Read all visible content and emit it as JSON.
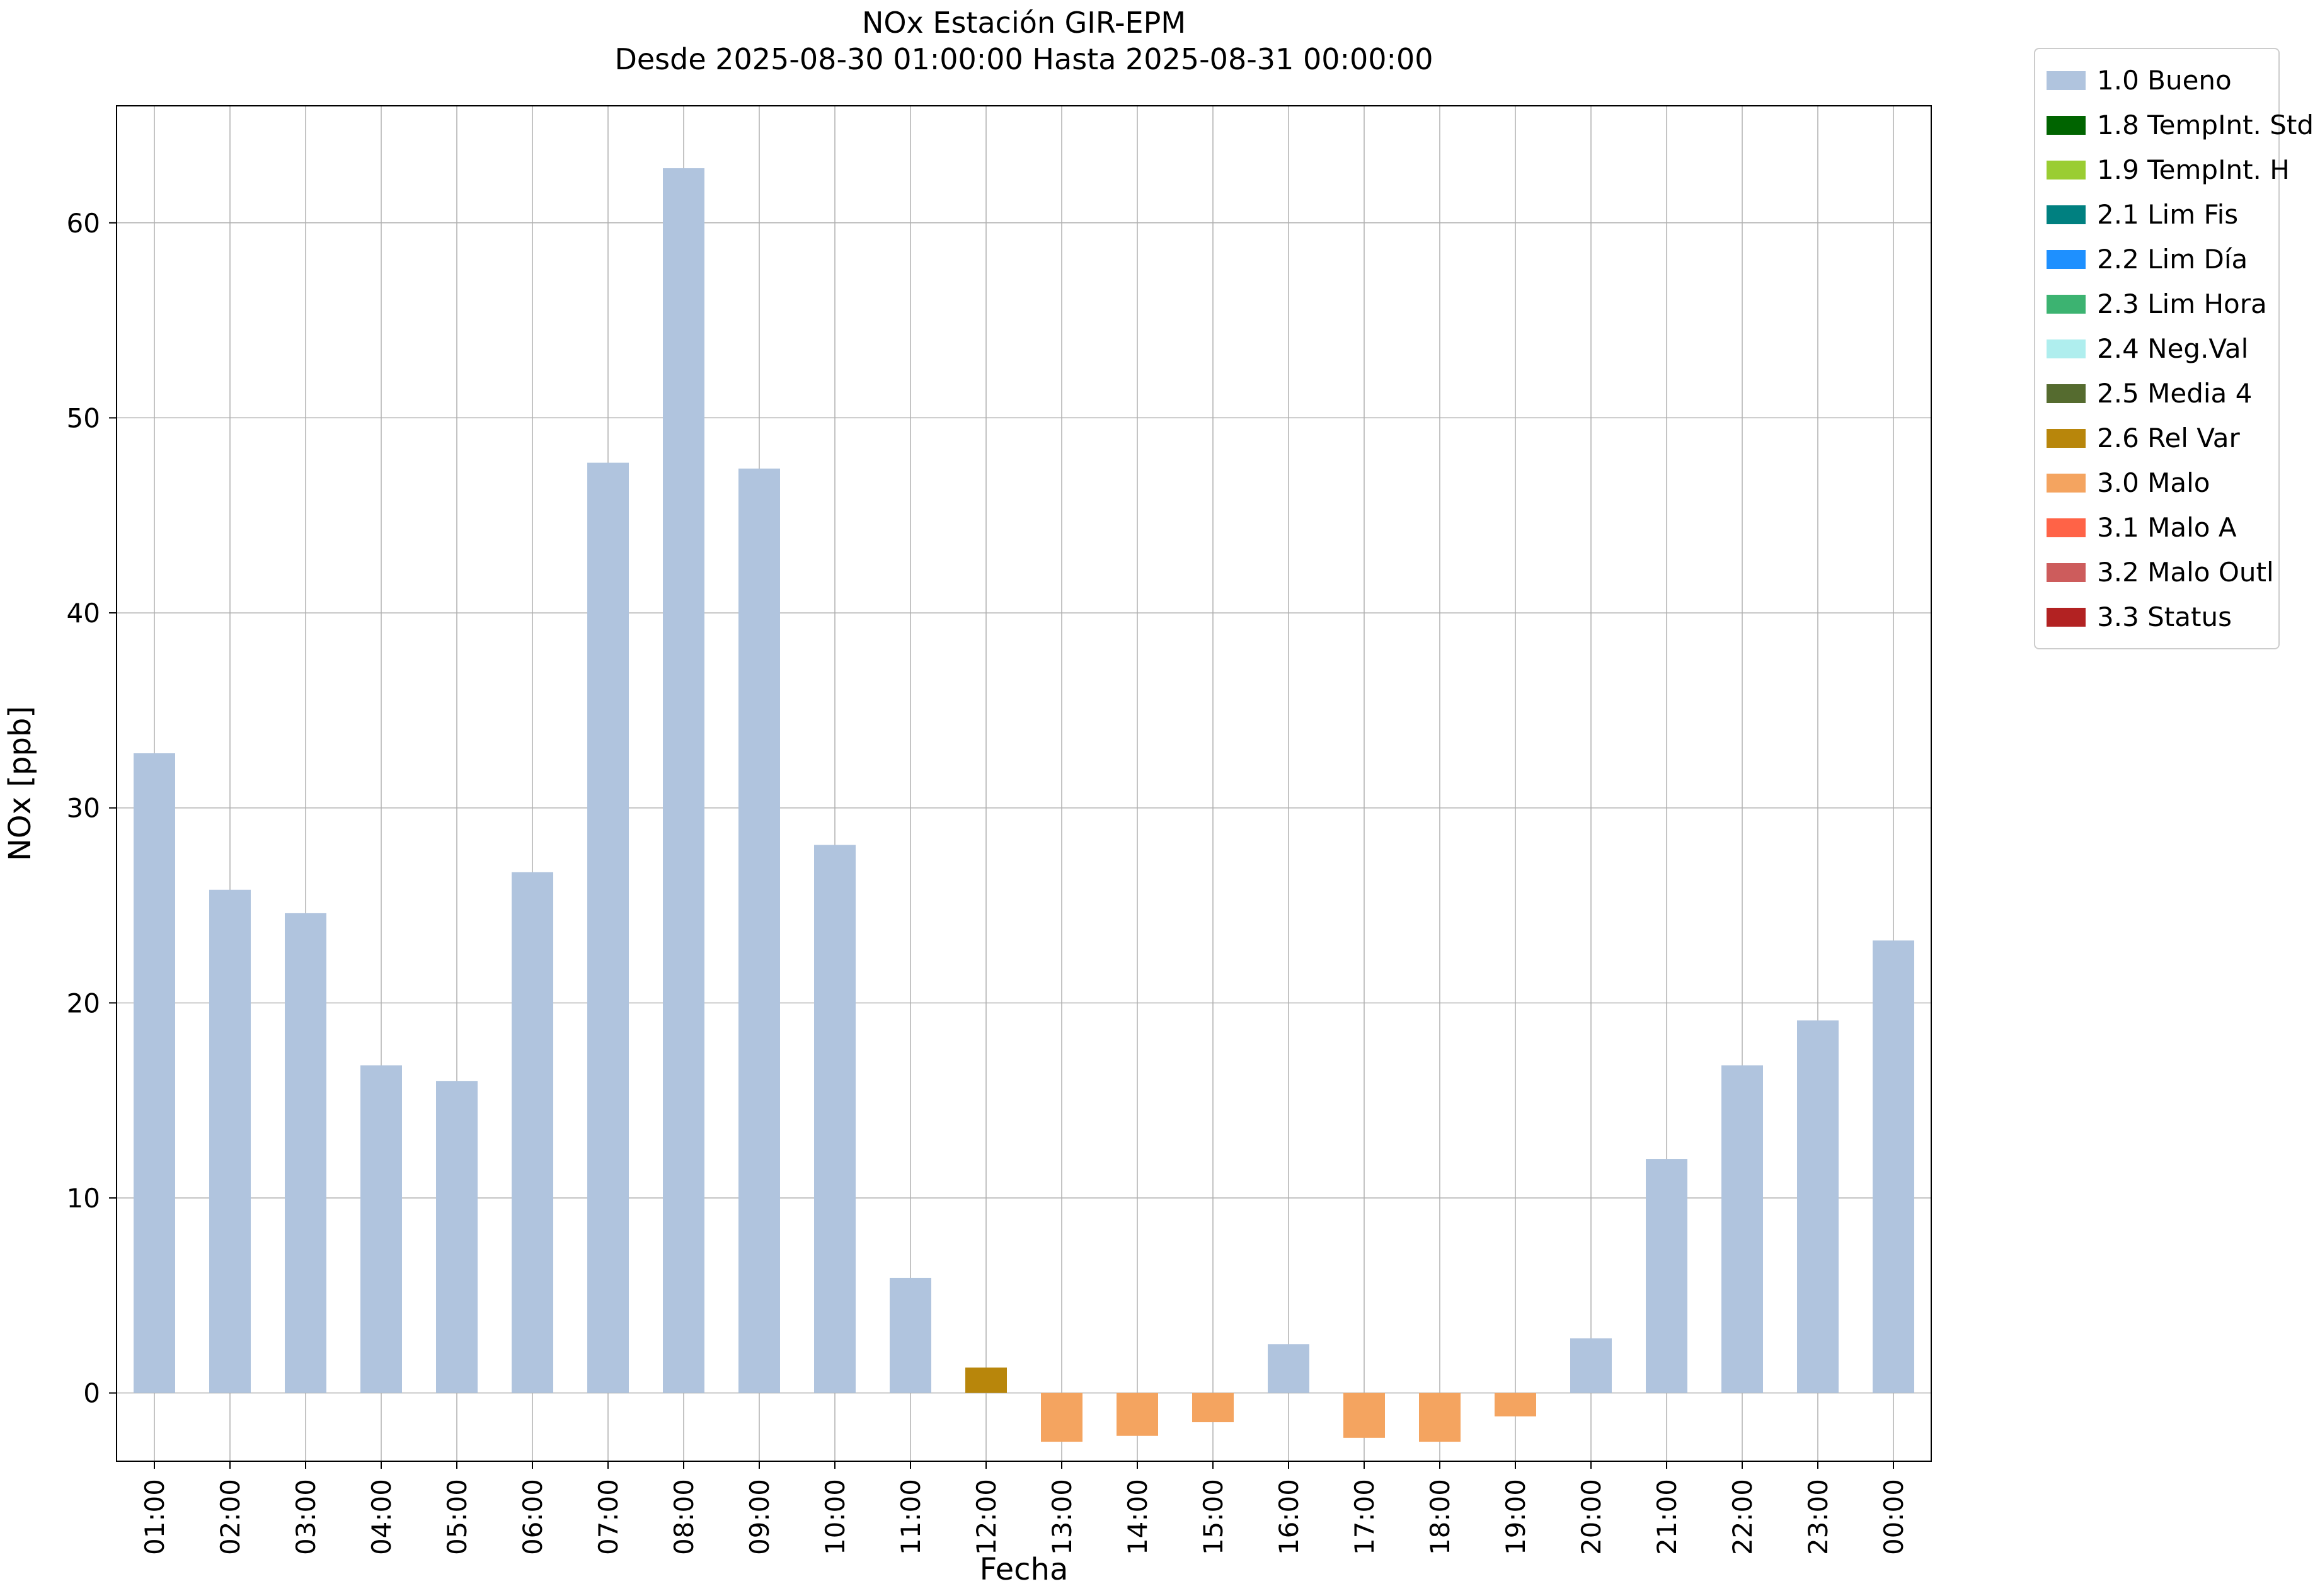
{
  "title": "NOx Estación GIR-EPM",
  "subtitle": "Desde 2025-08-30 01:00:00 Hasta 2025-08-31 00:00:00",
  "chart_data": {
    "type": "bar",
    "title": "NOx Estación GIR-EPM",
    "subtitle": "Desde 2025-08-30 01:00:00 Hasta 2025-08-31 00:00:00",
    "xlabel": "Fecha",
    "ylabel": "NOx [ppb]",
    "ylim": [
      -3.5,
      66
    ],
    "yticks": [
      0,
      10,
      20,
      30,
      40,
      50,
      60
    ],
    "grid": true,
    "legend_position": "outside-top-right",
    "categories": [
      "01:00",
      "02:00",
      "03:00",
      "04:00",
      "05:00",
      "06:00",
      "07:00",
      "08:00",
      "09:00",
      "10:00",
      "11:00",
      "12:00",
      "13:00",
      "14:00",
      "15:00",
      "16:00",
      "17:00",
      "18:00",
      "19:00",
      "20:00",
      "21:00",
      "22:00",
      "23:00",
      "00:00"
    ],
    "values": [
      32.8,
      25.8,
      24.6,
      16.8,
      16.0,
      26.7,
      47.7,
      62.8,
      47.4,
      28.1,
      5.9,
      1.3,
      -2.5,
      -2.2,
      -1.5,
      2.5,
      -2.3,
      -2.5,
      -1.2,
      2.8,
      12.0,
      16.8,
      19.1,
      23.2
    ],
    "bar_legend_index": [
      0,
      0,
      0,
      0,
      0,
      0,
      0,
      0,
      0,
      0,
      0,
      8,
      9,
      9,
      9,
      0,
      9,
      9,
      9,
      0,
      0,
      0,
      0,
      0
    ],
    "legend": [
      {
        "label": "1.0 Bueno",
        "color": "#b0c4de"
      },
      {
        "label": "1.8 TempInt. Std",
        "color": "#006400"
      },
      {
        "label": "1.9 TempInt. H",
        "color": "#9acd32"
      },
      {
        "label": "2.1 Lim Fis",
        "color": "#008080"
      },
      {
        "label": "2.2 Lim Día",
        "color": "#1e90ff"
      },
      {
        "label": "2.3 Lim Hora",
        "color": "#3cb371"
      },
      {
        "label": "2.4 Neg.Val",
        "color": "#afeeee"
      },
      {
        "label": "2.5 Media 4",
        "color": "#556b2f"
      },
      {
        "label": "2.6 Rel Var",
        "color": "#b8860b"
      },
      {
        "label": "3.0 Malo",
        "color": "#f4a460"
      },
      {
        "label": "3.1 Malo A",
        "color": "#ff6347"
      },
      {
        "label": "3.2 Malo Outl",
        "color": "#cd5c5c"
      },
      {
        "label": "3.3 Status",
        "color": "#b22222"
      }
    ]
  }
}
